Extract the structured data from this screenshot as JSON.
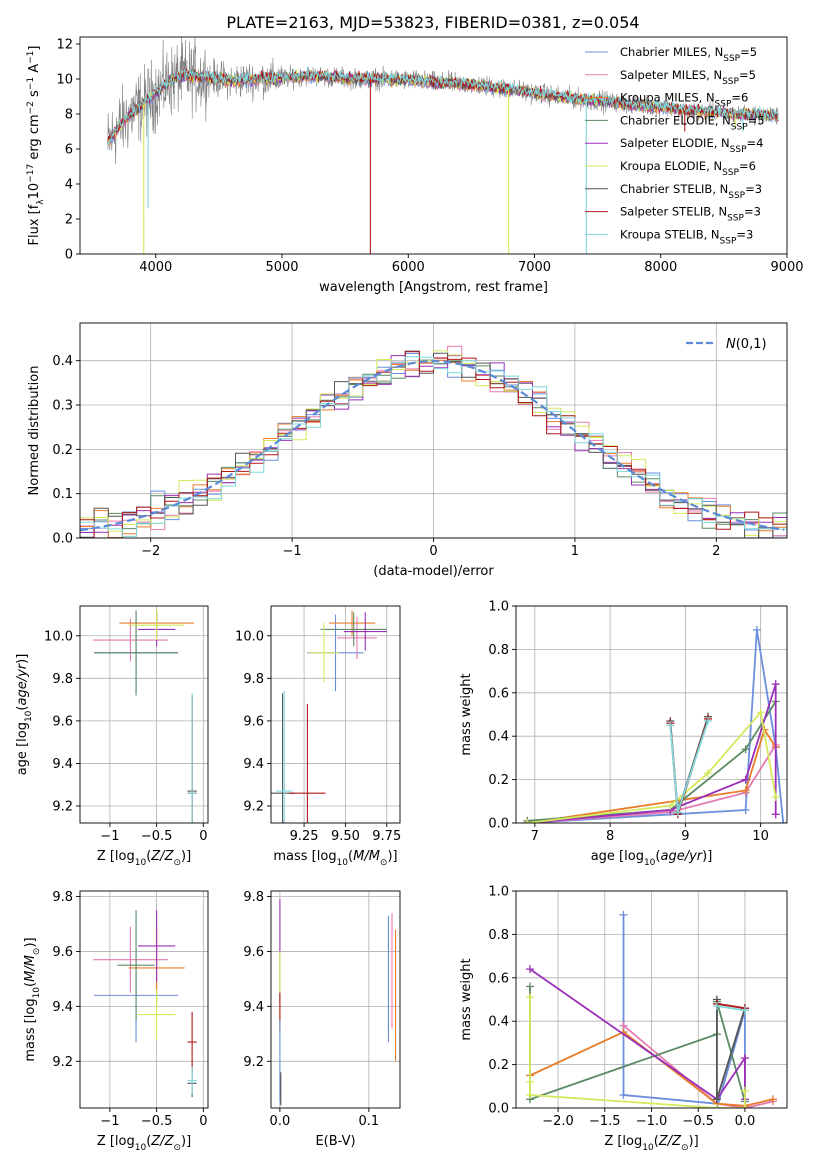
{
  "figure_title": "PLATE=2163, MJD=53823, FIBERID=0381, z=0.054",
  "colors": {
    "chabrier_miles": "#6a8fdc",
    "salpeter_miles": "#e37bb0",
    "kroupa_miles": "#e87d2a",
    "chabrier_elodie": "#5c8a64",
    "salpeter_elodie": "#9b30b8",
    "kroupa_elodie": "#d4ea5a",
    "chabrier_stelib": "#555555",
    "salpeter_stelib": "#b01818",
    "kroupa_stelib": "#7fd8dc",
    "data": "#808080",
    "gaussian": "#5b8ad8"
  },
  "chart_data": [
    {
      "id": "spectrum",
      "type": "line",
      "xlabel": "wavelength [Angstrom, rest frame]",
      "ylabel_parts": [
        "Flux [f",
        "λ",
        "10",
        "−17",
        " erg cm",
        "−2",
        " s",
        "−1",
        " A",
        "−1",
        "]"
      ],
      "xlim": [
        3400,
        9000
      ],
      "ylim": [
        0,
        12.4
      ],
      "xticks": [
        4000,
        5000,
        6000,
        7000,
        8000,
        9000
      ],
      "yticks": [
        0,
        2,
        4,
        6,
        8,
        10,
        12
      ],
      "legend_position": "top-right",
      "legend": [
        {
          "base": "Chabrier MILES, N",
          "sub": "SSP",
          "tail": "=5",
          "color_key": "chabrier_miles"
        },
        {
          "base": "Salpeter MILES, N",
          "sub": "SSP",
          "tail": "=5",
          "color_key": "salpeter_miles"
        },
        {
          "base": "Kroupa MILES, N",
          "sub": "SSP",
          "tail": "=6",
          "color_key": "kroupa_miles"
        },
        {
          "base": "Chabrier ELODIE, N",
          "sub": "SSP",
          "tail": "=5",
          "color_key": "chabrier_elodie"
        },
        {
          "base": "Salpeter ELODIE, N",
          "sub": "SSP",
          "tail": "=4",
          "color_key": "salpeter_elodie"
        },
        {
          "base": "Kroupa ELODIE, N",
          "sub": "SSP",
          "tail": "=6",
          "color_key": "kroupa_elodie"
        },
        {
          "base": "Chabrier STELIB, N",
          "sub": "SSP",
          "tail": "=3",
          "color_key": "chabrier_stelib"
        },
        {
          "base": "Salpeter STELIB, N",
          "sub": "SSP",
          "tail": "=3",
          "color_key": "salpeter_stelib"
        },
        {
          "base": "Kroupa STELIB, N",
          "sub": "SSP",
          "tail": "=3",
          "color_key": "kroupa_stelib"
        }
      ],
      "continuum": [
        [
          3620,
          6.3
        ],
        [
          3700,
          7.2
        ],
        [
          3800,
          8.0
        ],
        [
          3900,
          8.6
        ],
        [
          4000,
          9.2
        ],
        [
          4100,
          9.8
        ],
        [
          4200,
          10.2
        ],
        [
          4400,
          10.1
        ],
        [
          4600,
          9.9
        ],
        [
          4800,
          10.0
        ],
        [
          5000,
          10.05
        ],
        [
          5200,
          10.2
        ],
        [
          5400,
          10.1
        ],
        [
          5600,
          10.0
        ],
        [
          5800,
          10.0
        ],
        [
          6000,
          9.95
        ],
        [
          6200,
          9.8
        ],
        [
          6400,
          9.75
        ],
        [
          6600,
          9.6
        ],
        [
          6800,
          9.4
        ],
        [
          7000,
          9.2
        ],
        [
          7200,
          9.0
        ],
        [
          7400,
          8.8
        ],
        [
          7600,
          8.7
        ],
        [
          7800,
          8.5
        ],
        [
          8000,
          8.4
        ],
        [
          8200,
          8.2
        ],
        [
          8400,
          8.1
        ],
        [
          8600,
          8.0
        ],
        [
          8800,
          7.95
        ],
        [
          8930,
          7.9
        ]
      ],
      "dips": [
        {
          "x": 3905,
          "y": 0.0
        },
        {
          "x": 3940,
          "y": 2.6
        },
        {
          "x": 5700,
          "y": 0.0
        },
        {
          "x": 6795,
          "y": 0.0
        },
        {
          "x": 7410,
          "y": 0.0
        },
        {
          "x": 8190,
          "y": 7.0
        },
        {
          "x": 8590,
          "y": 7.2
        },
        {
          "x": 8650,
          "y": 7.0
        }
      ]
    },
    {
      "id": "residuals",
      "type": "step",
      "xlabel": "(data-model)/error",
      "ylabel": "Normed distribution",
      "xlim": [
        -2.5,
        2.5
      ],
      "ylim": [
        0,
        0.485
      ],
      "xticks": [
        -2,
        -1,
        0,
        1,
        2
      ],
      "yticks": [
        0.0,
        0.1,
        0.2,
        0.3,
        0.4
      ],
      "bin_width": 0.1,
      "legend_position": "top-right",
      "legend_label": "N(0,1)"
    },
    {
      "id": "age_vs_z",
      "type": "errorbar",
      "xlabel": "Z [log10(Z/Z⊙)]",
      "ylabel": "age [log10(age/yr)]",
      "xlim": [
        -1.32,
        0.05
      ],
      "ylim": [
        9.12,
        10.14
      ],
      "xticks": [
        -1,
        -0.5,
        0
      ],
      "xtick_labels": [
        "−1",
        "−0.5",
        "0"
      ],
      "yticks": [
        9.2,
        9.4,
        9.6,
        9.8,
        10.0
      ],
      "points": [
        {
          "x": -0.72,
          "xerr": 0.45,
          "y": 9.92,
          "yerr": 0.18,
          "color_key": "chabrier_miles"
        },
        {
          "x": -0.78,
          "xerr": 0.4,
          "y": 9.98,
          "yerr": 0.1,
          "color_key": "salpeter_miles"
        },
        {
          "x": -0.5,
          "xerr": 0.4,
          "y": 10.06,
          "yerr": 0.06,
          "color_key": "kroupa_miles"
        },
        {
          "x": -0.72,
          "xerr": 0.45,
          "y": 9.92,
          "yerr": 0.2,
          "color_key": "chabrier_elodie"
        },
        {
          "x": -0.5,
          "xerr": 0.2,
          "y": 10.03,
          "yerr": 0.08,
          "color_key": "salpeter_elodie"
        },
        {
          "x": -0.5,
          "xerr": 0.3,
          "y": 10.05,
          "yerr": 0.07,
          "color_key": "kroupa_elodie"
        },
        {
          "x": -0.12,
          "xerr": 0.05,
          "y": 9.27,
          "yerr": 0.45,
          "color_key": "chabrier_stelib"
        },
        {
          "x": -0.12,
          "xerr": 0.05,
          "y": 9.26,
          "yerr": 0.45,
          "color_key": "salpeter_stelib"
        },
        {
          "x": -0.12,
          "xerr": 0.05,
          "y": 9.26,
          "yerr": 0.47,
          "color_key": "kroupa_stelib"
        }
      ]
    },
    {
      "id": "age_vs_mass",
      "type": "errorbar",
      "xlabel": "mass [log10(M/M⊙)]",
      "xlim": [
        9.05,
        9.83
      ],
      "ylim": [
        9.12,
        10.14
      ],
      "xticks": [
        9.25,
        9.5,
        9.75
      ],
      "xtick_labels": [
        "9.25",
        "9.50",
        "9.75"
      ],
      "yticks": [
        9.2,
        9.4,
        9.6,
        9.8,
        10.0
      ],
      "points": [
        {
          "x": 9.44,
          "xerr": 0.17,
          "y": 9.92,
          "yerr": 0.18,
          "color_key": "chabrier_miles"
        },
        {
          "x": 9.57,
          "xerr": 0.12,
          "y": 9.99,
          "yerr": 0.1,
          "color_key": "salpeter_miles"
        },
        {
          "x": 9.54,
          "xerr": 0.14,
          "y": 10.06,
          "yerr": 0.06,
          "color_key": "kroupa_miles"
        },
        {
          "x": 9.55,
          "xerr": 0.2,
          "y": 10.03,
          "yerr": 0.08,
          "color_key": "chabrier_elodie"
        },
        {
          "x": 9.62,
          "xerr": 0.13,
          "y": 10.02,
          "yerr": 0.09,
          "color_key": "salpeter_elodie"
        },
        {
          "x": 9.37,
          "xerr": 0.09,
          "y": 9.92,
          "yerr": 0.14,
          "color_key": "kroupa_elodie"
        },
        {
          "x": 9.12,
          "xerr": 0.07,
          "y": 9.26,
          "yerr": 0.47,
          "color_key": "chabrier_stelib"
        },
        {
          "x": 9.27,
          "xerr": 0.11,
          "y": 9.26,
          "yerr": 0.42,
          "color_key": "salpeter_stelib"
        },
        {
          "x": 9.13,
          "xerr": 0.05,
          "y": 9.27,
          "yerr": 0.47,
          "color_key": "kroupa_stelib"
        }
      ]
    },
    {
      "id": "weight_vs_age",
      "type": "line",
      "xlabel": "age [log10(age/yr)]",
      "ylabel": "mass weight",
      "xlim": [
        6.75,
        10.35
      ],
      "ylim": [
        0,
        1.0
      ],
      "xticks": [
        7,
        8,
        9,
        10
      ],
      "yticks": [
        0.0,
        0.2,
        0.4,
        0.6,
        0.8,
        1.0
      ],
      "series": [
        {
          "color_key": "chabrier_miles",
          "points": [
            [
              6.9,
              0.0
            ],
            [
              9.8,
              0.06
            ],
            [
              9.95,
              0.89
            ],
            [
              10.2,
              0.35
            ],
            [
              10.3,
              0.0
            ]
          ]
        },
        {
          "color_key": "salpeter_miles",
          "points": [
            [
              6.9,
              0.0
            ],
            [
              8.8,
              0.05
            ],
            [
              9.8,
              0.14
            ],
            [
              10.2,
              0.36
            ],
            [
              10.2,
              0.35
            ]
          ]
        },
        {
          "color_key": "kroupa_miles",
          "points": [
            [
              6.9,
              0.0
            ],
            [
              9.8,
              0.15
            ],
            [
              10.05,
              0.43
            ],
            [
              10.2,
              0.35
            ]
          ]
        },
        {
          "color_key": "chabrier_elodie",
          "points": [
            [
              6.9,
              0.01
            ],
            [
              8.8,
              0.06
            ],
            [
              9.8,
              0.34
            ],
            [
              10.2,
              0.56
            ]
          ]
        },
        {
          "color_key": "salpeter_elodie",
          "points": [
            [
              6.9,
              0.0
            ],
            [
              8.8,
              0.06
            ],
            [
              9.8,
              0.2
            ],
            [
              10.2,
              0.64
            ],
            [
              10.2,
              0.04
            ]
          ]
        },
        {
          "color_key": "kroupa_elodie",
          "points": [
            [
              6.9,
              0.0
            ],
            [
              8.8,
              0.08
            ],
            [
              9.3,
              0.23
            ],
            [
              10.0,
              0.51
            ],
            [
              10.2,
              0.12
            ]
          ]
        },
        {
          "color_key": "chabrier_stelib",
          "points": [
            [
              8.8,
              0.47
            ],
            [
              8.9,
              0.05
            ],
            [
              9.3,
              0.49
            ]
          ]
        },
        {
          "color_key": "salpeter_stelib",
          "points": [
            [
              8.8,
              0.46
            ],
            [
              8.9,
              0.04
            ],
            [
              9.3,
              0.48
            ]
          ]
        },
        {
          "color_key": "kroupa_stelib",
          "points": [
            [
              8.8,
              0.45
            ],
            [
              8.9,
              0.05
            ],
            [
              9.3,
              0.47
            ]
          ]
        }
      ]
    },
    {
      "id": "mass_vs_z",
      "type": "errorbar",
      "xlabel": "Z [log10(Z/Z⊙)]",
      "ylabel": "mass [log10(M/M⊙)]",
      "xlim": [
        -1.32,
        0.05
      ],
      "ylim": [
        9.03,
        9.82
      ],
      "xticks": [
        -1,
        -0.5,
        0
      ],
      "xtick_labels": [
        "−1",
        "−0.5",
        "0"
      ],
      "yticks": [
        9.2,
        9.4,
        9.6,
        9.8
      ],
      "points": [
        {
          "x": -0.72,
          "xerr": 0.45,
          "y": 9.44,
          "yerr": 0.17,
          "color_key": "chabrier_miles"
        },
        {
          "x": -0.78,
          "xerr": 0.4,
          "y": 9.57,
          "yerr": 0.12,
          "color_key": "salpeter_miles"
        },
        {
          "x": -0.5,
          "xerr": 0.3,
          "y": 9.54,
          "yerr": 0.14,
          "color_key": "kroupa_miles"
        },
        {
          "x": -0.72,
          "xerr": 0.2,
          "y": 9.55,
          "yerr": 0.2,
          "color_key": "chabrier_elodie"
        },
        {
          "x": -0.5,
          "xerr": 0.2,
          "y": 9.62,
          "yerr": 0.13,
          "color_key": "salpeter_elodie"
        },
        {
          "x": -0.5,
          "xerr": 0.2,
          "y": 9.37,
          "yerr": 0.09,
          "color_key": "kroupa_elodie"
        },
        {
          "x": -0.12,
          "xerr": 0.05,
          "y": 9.12,
          "yerr": 0.05,
          "color_key": "chabrier_stelib"
        },
        {
          "x": -0.12,
          "xerr": 0.05,
          "y": 9.27,
          "yerr": 0.11,
          "color_key": "salpeter_stelib"
        },
        {
          "x": -0.12,
          "xerr": 0.05,
          "y": 9.13,
          "yerr": 0.05,
          "color_key": "kroupa_stelib"
        }
      ]
    },
    {
      "id": "mass_vs_ebv",
      "type": "errorbar",
      "xlabel": "E(B-V)",
      "xlim": [
        -0.01,
        0.135
      ],
      "ylim": [
        9.03,
        9.82
      ],
      "xticks": [
        0.0,
        0.1
      ],
      "xtick_labels": [
        "0.0",
        "0.1"
      ],
      "yticks": [
        9.2,
        9.4,
        9.6,
        9.8
      ],
      "points": [
        {
          "x": 0.0,
          "y": 9.6,
          "yerr": 0.19,
          "color_key": "salpeter_elodie"
        },
        {
          "x": 0.0,
          "y": 9.45,
          "yerr": 0.15,
          "color_key": "kroupa_elodie"
        },
        {
          "x": 0.0,
          "y": 9.38,
          "yerr": 0.07,
          "color_key": "salpeter_stelib"
        },
        {
          "x": 0.0,
          "y": 9.2,
          "yerr": 0.15,
          "color_key": "chabrier_miles"
        },
        {
          "x": 0.001,
          "y": 9.1,
          "yerr": 0.06,
          "color_key": "chabrier_stelib"
        },
        {
          "x": 0.122,
          "y": 9.5,
          "yerr": 0.23,
          "color_key": "chabrier_miles"
        },
        {
          "x": 0.126,
          "y": 9.53,
          "yerr": 0.21,
          "color_key": "salpeter_miles"
        },
        {
          "x": 0.13,
          "y": 9.44,
          "yerr": 0.24,
          "color_key": "kroupa_miles"
        }
      ]
    },
    {
      "id": "weight_vs_z",
      "type": "line",
      "xlabel": "Z [log10(Z/Z⊙)]",
      "ylabel": "mass weight",
      "xlim": [
        -2.45,
        0.45
      ],
      "ylim": [
        0,
        1.0
      ],
      "xticks": [
        -2.0,
        -1.5,
        -1.0,
        -0.5,
        0.0
      ],
      "xtick_labels": [
        "−2.0",
        "−1.5",
        "−1.0",
        "−0.5",
        "0.0"
      ],
      "yticks": [
        0.0,
        0.2,
        0.4,
        0.6,
        0.8,
        1.0
      ],
      "series": [
        {
          "color_key": "chabrier_miles",
          "points": [
            [
              -1.3,
              0.89
            ],
            [
              -1.3,
              0.06
            ],
            [
              -0.3,
              0.02
            ],
            [
              -0.3,
              0.0
            ],
            [
              0.0,
              0.45
            ],
            [
              0.0,
              0.0
            ]
          ]
        },
        {
          "color_key": "salpeter_miles",
          "points": [
            [
              -1.3,
              0.38
            ],
            [
              -0.3,
              0.02
            ],
            [
              0.0,
              0.0
            ],
            [
              0.3,
              0.03
            ]
          ]
        },
        {
          "color_key": "kroupa_miles",
          "points": [
            [
              -2.3,
              0.15
            ],
            [
              -1.3,
              0.35
            ],
            [
              -0.3,
              0.02
            ],
            [
              0.0,
              0.01
            ],
            [
              0.3,
              0.04
            ]
          ]
        },
        {
          "color_key": "chabrier_elodie",
          "points": [
            [
              -2.3,
              0.56
            ],
            [
              -2.3,
              0.04
            ],
            [
              -0.3,
              0.34
            ],
            [
              -0.3,
              0.49
            ],
            [
              0.0,
              0.03
            ]
          ]
        },
        {
          "color_key": "salpeter_elodie",
          "points": [
            [
              -2.3,
              0.64
            ],
            [
              -0.3,
              0.04
            ],
            [
              0.0,
              0.23
            ],
            [
              0.0,
              0.04
            ]
          ]
        },
        {
          "color_key": "kroupa_elodie",
          "points": [
            [
              -2.3,
              0.51
            ],
            [
              -2.3,
              0.12
            ],
            [
              -2.3,
              0.06
            ],
            [
              -0.3,
              0.0
            ],
            [
              0.0,
              0.0
            ],
            [
              0.0,
              0.08
            ]
          ]
        },
        {
          "color_key": "chabrier_stelib",
          "points": [
            [
              -0.3,
              0.5
            ],
            [
              -0.3,
              0.04
            ],
            [
              0.0,
              0.46
            ]
          ]
        },
        {
          "color_key": "salpeter_stelib",
          "points": [
            [
              -0.3,
              0.48
            ],
            [
              0.0,
              0.46
            ]
          ]
        },
        {
          "color_key": "kroupa_stelib",
          "points": [
            [
              -0.3,
              0.47
            ],
            [
              0.0,
              0.45
            ]
          ]
        }
      ]
    }
  ]
}
